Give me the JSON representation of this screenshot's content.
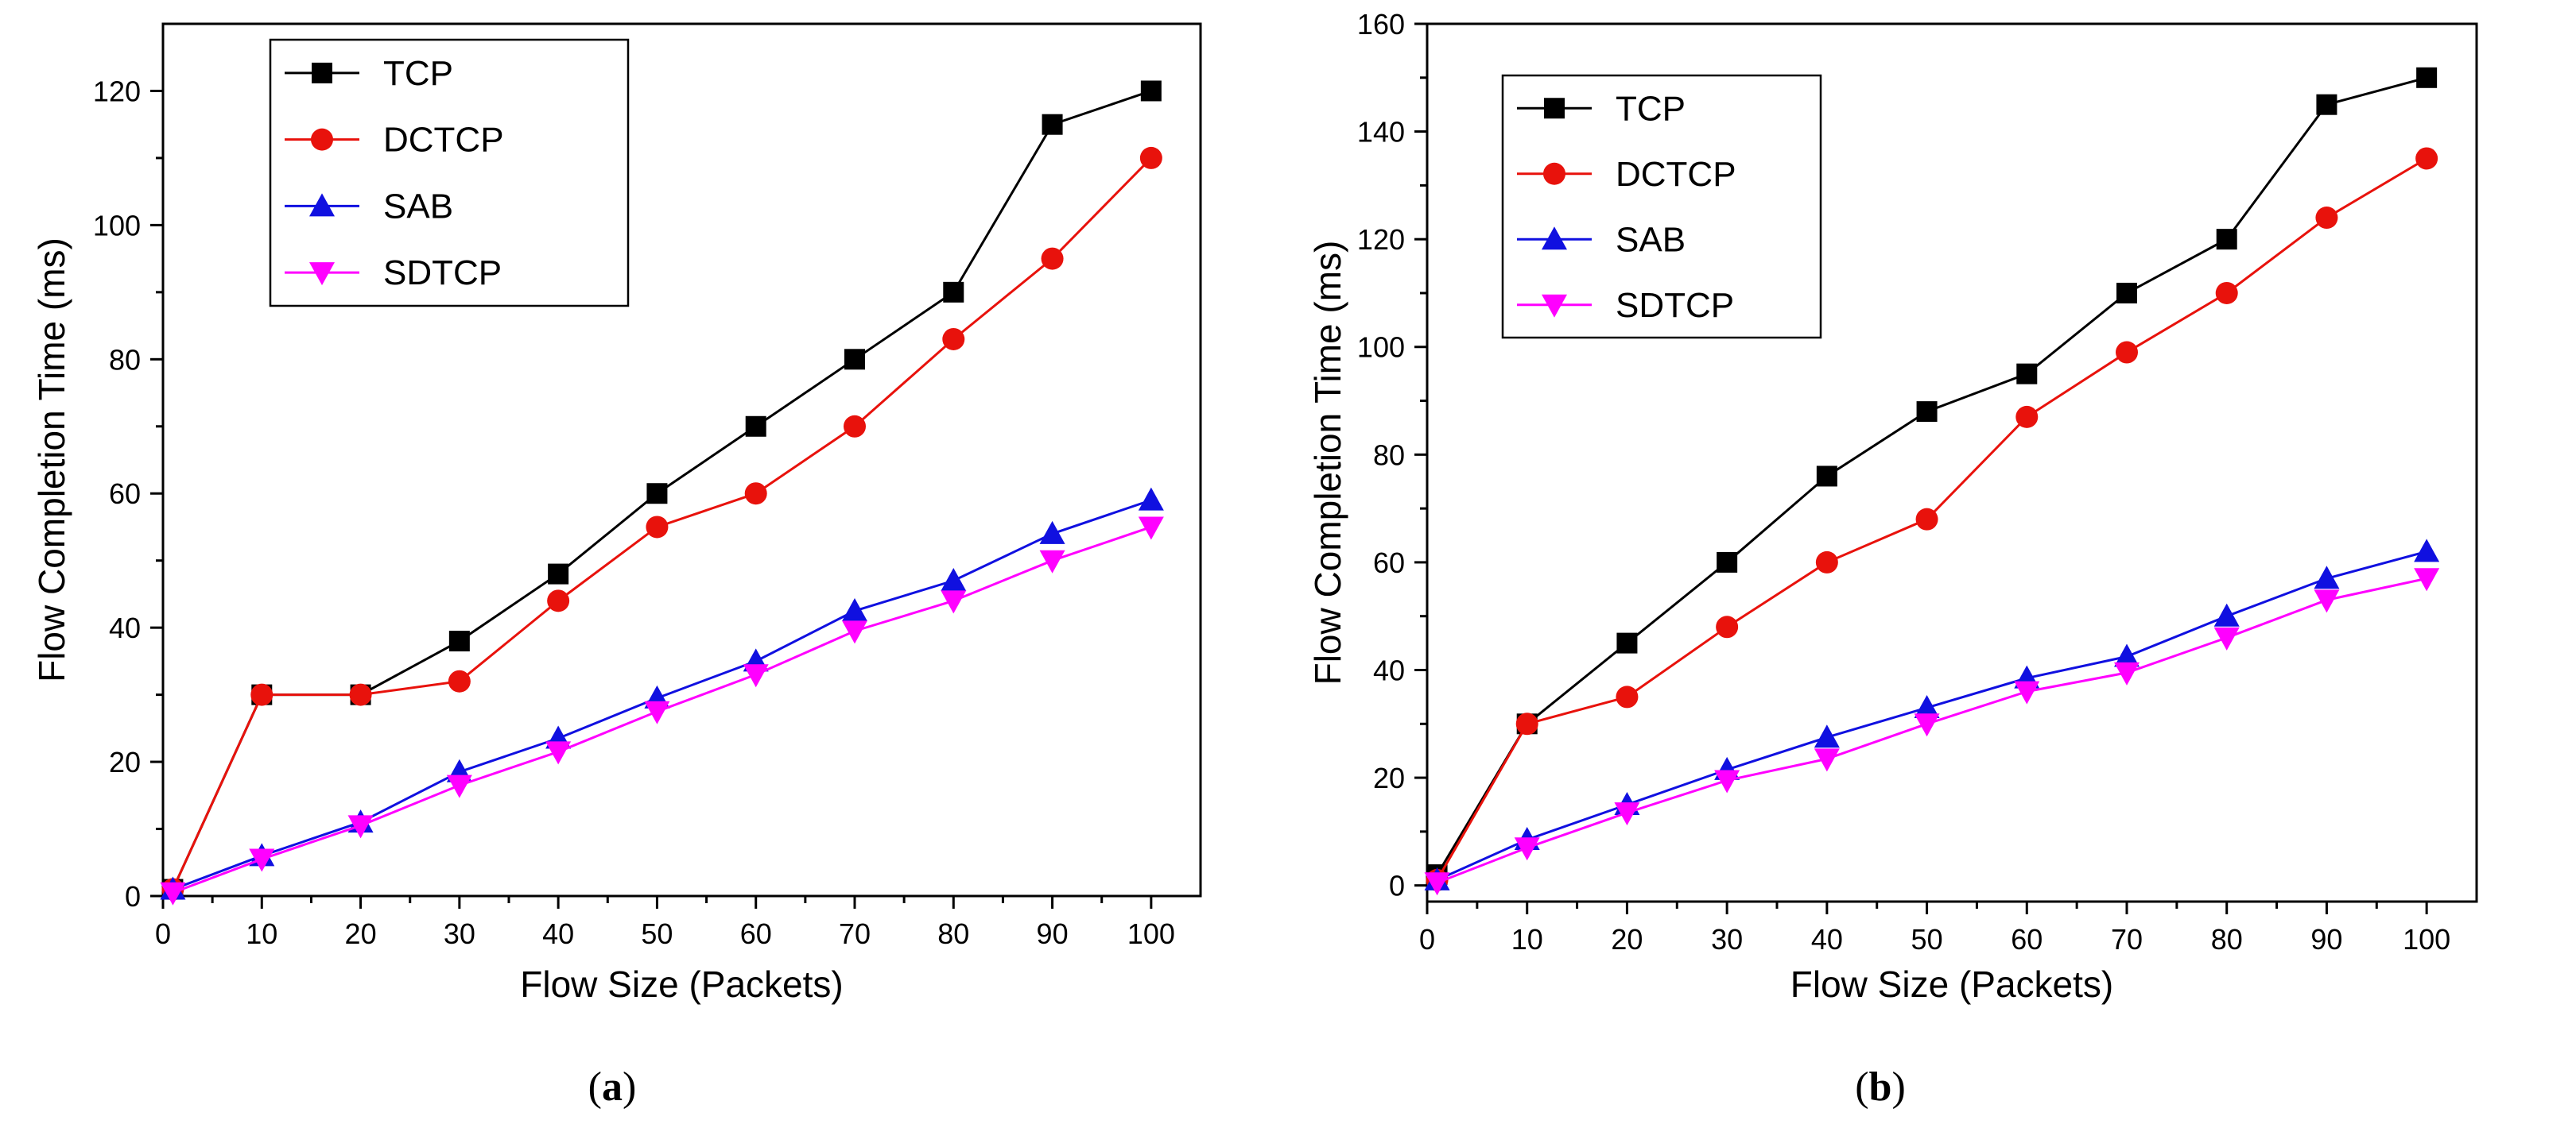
{
  "chart_data": [
    {
      "type": "line",
      "caption_letter": "a",
      "xlabel": "Flow Size (Packets)",
      "ylabel": "Flow Completion Time (ms)",
      "xlim": [
        0,
        105
      ],
      "ylim": [
        0,
        130
      ],
      "x_ticks": [
        0,
        10,
        20,
        30,
        40,
        50,
        60,
        70,
        80,
        90,
        100
      ],
      "y_ticks": [
        0,
        20,
        40,
        60,
        80,
        100,
        120
      ],
      "legend_position": "top-left",
      "x": [
        1,
        10,
        20,
        30,
        40,
        50,
        60,
        70,
        80,
        90,
        100
      ],
      "series": [
        {
          "name": "TCP",
          "color": "#000000",
          "marker": "square",
          "values": [
            1,
            30,
            30,
            38,
            48,
            60,
            70,
            80,
            90,
            115,
            120
          ]
        },
        {
          "name": "DCTCP",
          "color": "#e8120c",
          "marker": "circle",
          "values": [
            1,
            30,
            30,
            32,
            44,
            55,
            60,
            70,
            83,
            95,
            110
          ]
        },
        {
          "name": "SAB",
          "color": "#1010e0",
          "marker": "triangle-up",
          "values": [
            1,
            6,
            11,
            18.5,
            23.5,
            29.5,
            35,
            42.5,
            47,
            54,
            59
          ]
        },
        {
          "name": "SDTCP",
          "color": "#ff00ff",
          "marker": "triangle-down",
          "values": [
            0.5,
            5.5,
            10.5,
            16.5,
            21.5,
            27.5,
            33,
            39.5,
            44,
            50,
            55
          ]
        }
      ]
    },
    {
      "type": "line",
      "caption_letter": "b",
      "xlabel": "Flow Size (Packets)",
      "ylabel": "Flow Completion Time (ms)",
      "xlim": [
        0,
        105
      ],
      "ylim": [
        -3,
        160
      ],
      "x_ticks": [
        0,
        10,
        20,
        30,
        40,
        50,
        60,
        70,
        80,
        90,
        100
      ],
      "y_ticks": [
        0,
        20,
        40,
        60,
        80,
        100,
        120,
        140,
        160
      ],
      "legend_position": "top-left",
      "x": [
        1,
        10,
        20,
        30,
        40,
        50,
        60,
        70,
        80,
        90,
        100
      ],
      "series": [
        {
          "name": "TCP",
          "color": "#000000",
          "marker": "square",
          "values": [
            2,
            30,
            45,
            60,
            76,
            88,
            95,
            110,
            120,
            145,
            150
          ]
        },
        {
          "name": "DCTCP",
          "color": "#e8120c",
          "marker": "circle",
          "values": [
            1,
            30,
            35,
            48,
            60,
            68,
            87,
            99,
            110,
            124,
            135
          ]
        },
        {
          "name": "SAB",
          "color": "#1010e0",
          "marker": "triangle-up",
          "values": [
            1,
            8.5,
            15,
            21.5,
            27.5,
            33,
            38.5,
            42.5,
            50,
            57,
            62
          ]
        },
        {
          "name": "SDTCP",
          "color": "#ff00ff",
          "marker": "triangle-down",
          "values": [
            0.5,
            7,
            13.5,
            19.5,
            23.5,
            30,
            36,
            39.5,
            46,
            53,
            57
          ]
        }
      ]
    }
  ]
}
